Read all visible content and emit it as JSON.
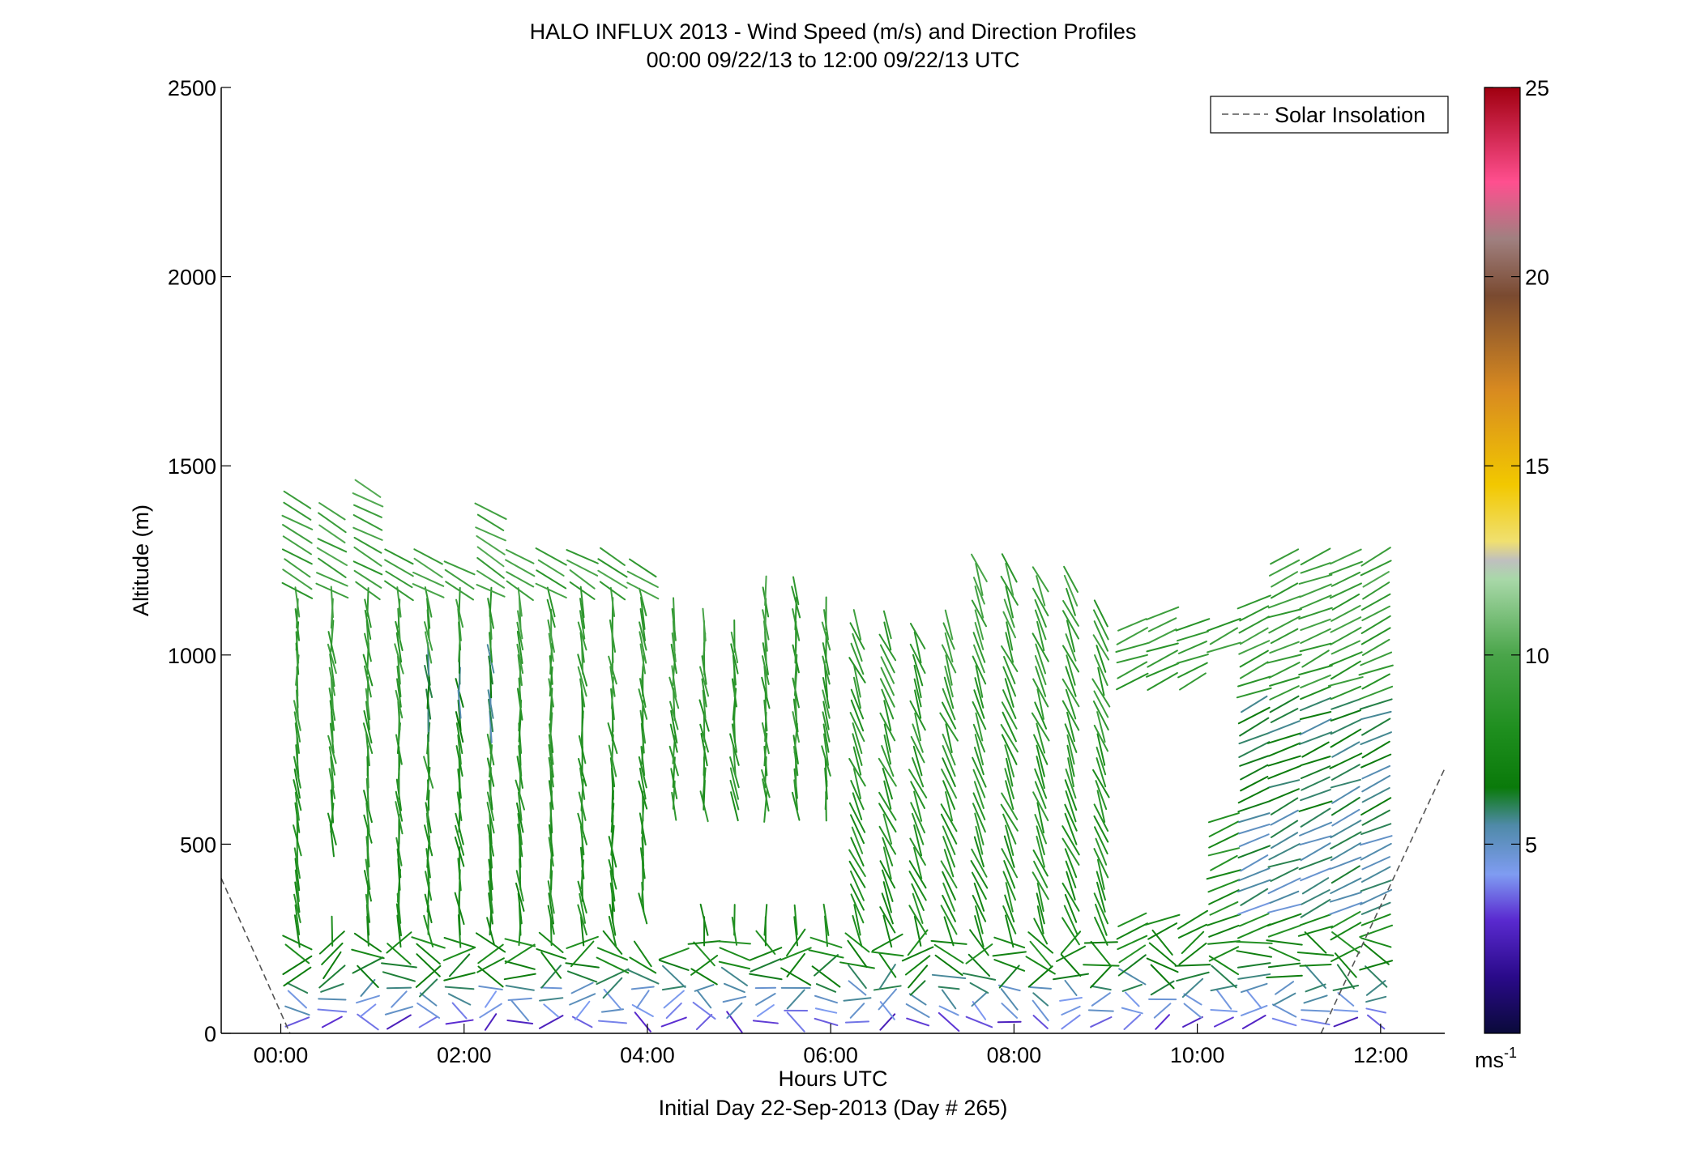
{
  "chart_data": {
    "type": "scatter",
    "title": "HALO INFLUX 2013 - Wind Speed (m/s) and Direction Profiles",
    "subtitle": "00:00 09/22/13 to 12:00 09/22/13  UTC",
    "xlabel": "Hours UTC",
    "xlabel2": "Initial Day 22-Sep-2013 (Day # 265)",
    "ylabel": "Altitude (m)",
    "xlim": [
      -0.65,
      12.7
    ],
    "ylim": [
      0,
      2500
    ],
    "x_ticks": [
      0,
      2,
      4,
      6,
      8,
      10,
      12
    ],
    "x_tick_labels": [
      "00:00",
      "02:00",
      "04:00",
      "06:00",
      "08:00",
      "10:00",
      "12:00"
    ],
    "y_ticks": [
      0,
      500,
      1000,
      1500,
      2000,
      2500
    ],
    "y_tick_labels": [
      "0",
      "500",
      "1000",
      "1500",
      "2000",
      "2500"
    ],
    "legend": {
      "entries": [
        "Solar Insolation"
      ],
      "placement": "top-right",
      "line_style": "dashed",
      "line_color": "#555555"
    },
    "colorbar": {
      "range": [
        0,
        25
      ],
      "ticks": [
        5,
        10,
        15,
        20,
        25
      ],
      "tick_labels": [
        "5",
        "10",
        "15",
        "20",
        "25"
      ],
      "unit_label": "ms",
      "unit_exponent": "-1",
      "colormap": [
        [
          0,
          "#0a0a3a"
        ],
        [
          1.5,
          "#2a0a8a"
        ],
        [
          3,
          "#5a2ad0"
        ],
        [
          4.2,
          "#7f9cf2"
        ],
        [
          5.5,
          "#4f8aa8"
        ],
        [
          6.5,
          "#0a7a0a"
        ],
        [
          8,
          "#1e8e1e"
        ],
        [
          10,
          "#4aa54a"
        ],
        [
          12,
          "#a8d8a8"
        ],
        [
          12.5,
          "#bfbfbf"
        ],
        [
          13,
          "#f0e070"
        ],
        [
          14.5,
          "#f2c800"
        ],
        [
          17,
          "#d88a20"
        ],
        [
          19.5,
          "#7a4a30"
        ],
        [
          21,
          "#a08080"
        ],
        [
          22.5,
          "#ff4f8f"
        ],
        [
          25,
          "#a00010"
        ]
      ]
    },
    "solar_insolation": {
      "left_segment": {
        "x": [
          -0.65,
          0.1
        ],
        "y": [
          410,
          0
        ]
      },
      "right_segment": {
        "x": [
          11.35,
          12.7
        ],
        "y": [
          0,
          700
        ]
      }
    },
    "profile_times_h": [
      0.18,
      0.56,
      0.95,
      1.29,
      1.61,
      1.95,
      2.29,
      2.61,
      2.95,
      3.29,
      3.62,
      3.95,
      4.29,
      4.62,
      4.95,
      5.29,
      5.62,
      5.95,
      6.29,
      6.62,
      6.95,
      7.29,
      7.62,
      7.95,
      8.29,
      8.62,
      8.95,
      9.29,
      9.62,
      9.95,
      10.29,
      10.62,
      10.95,
      11.29,
      11.62,
      11.95
    ],
    "profile_top_m": [
      1420,
      1400,
      1450,
      1270,
      1260,
      1240,
      1380,
      1260,
      1260,
      1260,
      1260,
      1240,
      1120,
      1080,
      1060,
      1180,
      1180,
      1120,
      1100,
      1080,
      1070,
      1100,
      1250,
      1230,
      1220,
      1220,
      1110,
      1080,
      1130,
      1100,
      1100,
      1160,
      1280,
      1280,
      1280,
      1280
    ],
    "barb_altitude_step_m": 30,
    "speed_profile_m_s": [
      [
        0,
        2
      ],
      [
        60,
        4.5
      ],
      [
        120,
        5.5
      ],
      [
        200,
        7.5
      ],
      [
        400,
        8
      ],
      [
        700,
        8.5
      ],
      [
        1000,
        9
      ],
      [
        1300,
        9.5
      ],
      [
        1500,
        9.5
      ]
    ],
    "data_gaps": [
      {
        "x": [
          4.1,
          6.1
        ],
        "alt": [
          310,
          590
        ]
      },
      {
        "x": [
          9.1,
          10.2
        ],
        "alt": [
          330,
          900
        ]
      },
      {
        "x": [
          10.15,
          10.5
        ],
        "alt": [
          600,
          1000
        ]
      },
      {
        "x": [
          0.45,
          0.75
        ],
        "alt": [
          300,
          500
        ]
      },
      {
        "x": [
          3.8,
          4.3
        ],
        "alt": [
          220,
          300
        ]
      }
    ]
  }
}
